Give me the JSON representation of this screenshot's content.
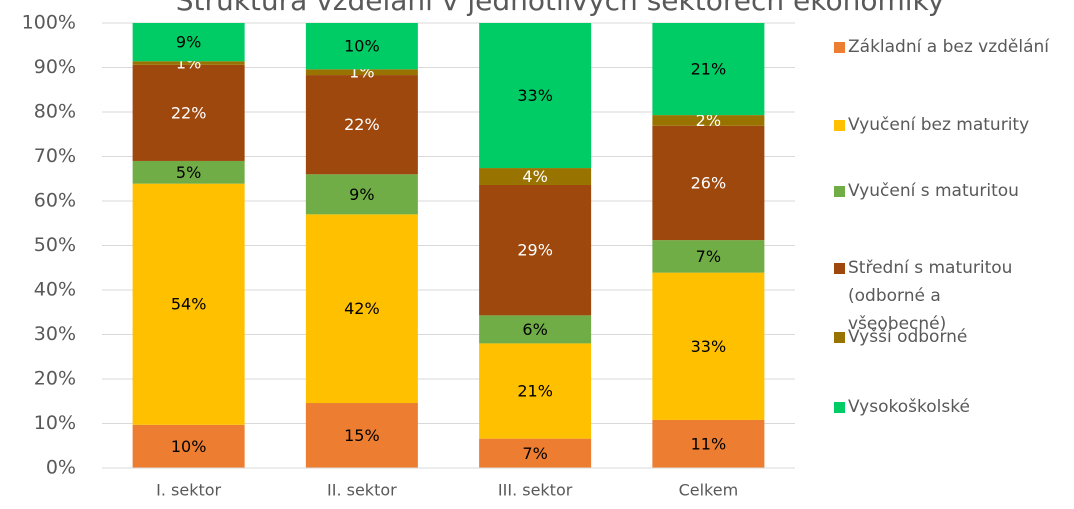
{
  "chart_data": {
    "type": "stacked_bar",
    "title": "Struktura vzdělání v jednotlivých sektorech ekonomiky",
    "categories": [
      "I. sektor",
      "II. sektor",
      "III. sektor",
      "Celkem"
    ],
    "series": [
      {
        "name": "Základní a bez vzdělání",
        "color": "#ED7D31",
        "label_color": "#000000",
        "values": [
          9.7,
          14.6,
          6.6,
          10.8
        ],
        "value_labels": [
          "10%",
          "15%",
          "7%",
          "11%"
        ]
      },
      {
        "name": "Vyučení bez maturity",
        "color": "#FFC000",
        "label_color": "#000000",
        "values": [
          54.2,
          42.4,
          21.4,
          33.1
        ],
        "value_labels": [
          "54%",
          "42%",
          "21%",
          "33%"
        ]
      },
      {
        "name": "Vyučení s maturitou",
        "color": "#70AD47",
        "label_color": "#000000",
        "values": [
          5.1,
          9.0,
          6.3,
          7.3
        ],
        "value_labels": [
          "5%",
          "9%",
          "6%",
          "7%"
        ]
      },
      {
        "name": "Střední s maturitou (odborné a všeobecné)",
        "color": "#9E480E",
        "label_color": "#ffffff",
        "values": [
          21.6,
          22.3,
          29.3,
          25.7
        ],
        "value_labels": [
          "22%",
          "22%",
          "29%",
          "26%"
        ]
      },
      {
        "name": "Vyšší odborné",
        "color": "#997300",
        "label_color": "#ffffff",
        "values": [
          0.8,
          1.3,
          3.8,
          2.4
        ],
        "value_labels": [
          "1%",
          "1%",
          "4%",
          "2%"
        ]
      },
      {
        "name": "Vysokoškolské",
        "color": "#00CC66",
        "label_color": "#000000",
        "values": [
          8.6,
          10.4,
          32.6,
          20.7
        ],
        "value_labels": [
          "9%",
          "10%",
          "33%",
          "21%"
        ]
      }
    ],
    "ylim": [
      0,
      100
    ],
    "yticks": [
      {
        "value": 0,
        "label": "0%"
      },
      {
        "value": 10,
        "label": "10%"
      },
      {
        "value": 20,
        "label": "20%"
      },
      {
        "value": 30,
        "label": "30%"
      },
      {
        "value": 40,
        "label": "40%"
      },
      {
        "value": 50,
        "label": "50%"
      },
      {
        "value": 60,
        "label": "60%"
      },
      {
        "value": 70,
        "label": "70%"
      },
      {
        "value": 80,
        "label": "80%"
      },
      {
        "value": 90,
        "label": "90%"
      },
      {
        "value": 100,
        "label": "100%"
      }
    ],
    "grid": true
  }
}
